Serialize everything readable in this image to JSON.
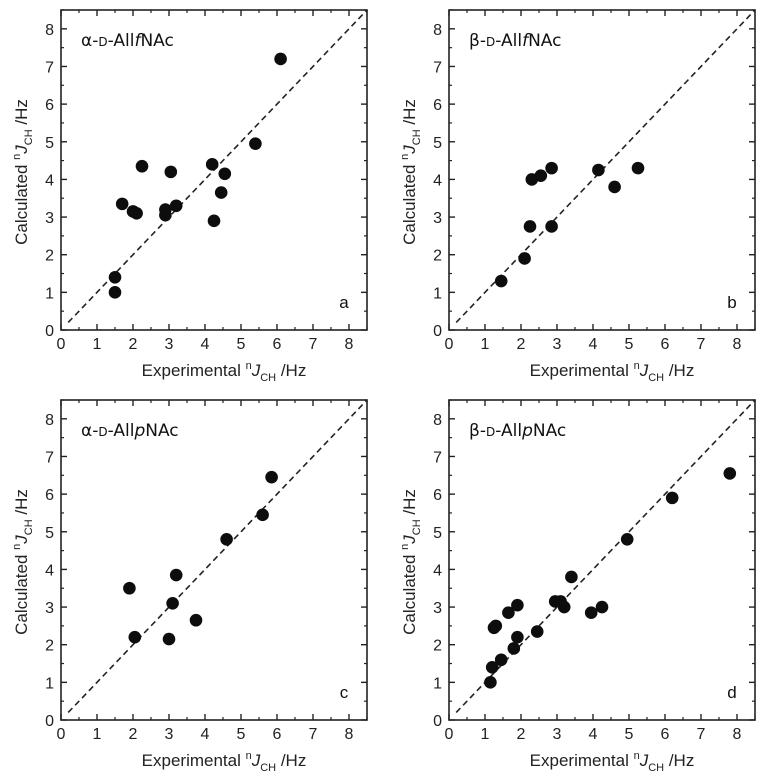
{
  "chart_data": [
    {
      "type": "scatter",
      "panel_letter": "a",
      "title": {
        "prefix": "α-",
        "sc": "d",
        "mid": "-All",
        "italic": "f",
        "suffix": "NAc"
      },
      "xlabel": {
        "base": "Experimental ",
        "sup": "n",
        "italic": "J",
        "sub": "CH",
        "unit": " /Hz"
      },
      "ylabel": {
        "base": "Calculated ",
        "sup": "n",
        "italic": "J",
        "sub": "CH",
        "unit": " /Hz"
      },
      "xlim": [
        0,
        8.5
      ],
      "ylim": [
        0,
        8.5
      ],
      "xticks": [
        0,
        1,
        2,
        3,
        4,
        5,
        6,
        7,
        8
      ],
      "yticks": [
        0,
        1,
        2,
        3,
        4,
        5,
        6,
        7,
        8
      ],
      "reference_line": "y = x",
      "grid": false,
      "points": [
        [
          1.5,
          1.4
        ],
        [
          1.5,
          1.0
        ],
        [
          1.7,
          3.35
        ],
        [
          2.0,
          3.15
        ],
        [
          2.1,
          3.1
        ],
        [
          2.25,
          4.35
        ],
        [
          2.9,
          3.2
        ],
        [
          2.9,
          3.05
        ],
        [
          3.05,
          4.2
        ],
        [
          3.2,
          3.3
        ],
        [
          4.2,
          4.4
        ],
        [
          4.25,
          2.9
        ],
        [
          4.45,
          3.65
        ],
        [
          4.55,
          4.15
        ],
        [
          5.4,
          4.95
        ],
        [
          6.1,
          7.2
        ]
      ]
    },
    {
      "type": "scatter",
      "panel_letter": "b",
      "title": {
        "prefix": "β-",
        "sc": "d",
        "mid": "-All",
        "italic": "f",
        "suffix": "NAc"
      },
      "xlabel": {
        "base": "Experimental ",
        "sup": "n",
        "italic": "J",
        "sub": "CH",
        "unit": " /Hz"
      },
      "ylabel": {
        "base": "Calculated ",
        "sup": "n",
        "italic": "J",
        "sub": "CH",
        "unit": " /Hz"
      },
      "xlim": [
        0,
        8.5
      ],
      "ylim": [
        0,
        8.5
      ],
      "xticks": [
        0,
        1,
        2,
        3,
        4,
        5,
        6,
        7,
        8
      ],
      "yticks": [
        0,
        1,
        2,
        3,
        4,
        5,
        6,
        7,
        8
      ],
      "reference_line": "y = x",
      "grid": false,
      "points": [
        [
          1.45,
          1.3
        ],
        [
          2.1,
          1.9
        ],
        [
          2.25,
          2.75
        ],
        [
          2.3,
          4.0
        ],
        [
          2.55,
          4.1
        ],
        [
          2.85,
          4.3
        ],
        [
          2.85,
          2.75
        ],
        [
          4.15,
          4.25
        ],
        [
          4.6,
          3.8
        ],
        [
          5.25,
          4.3
        ]
      ]
    },
    {
      "type": "scatter",
      "panel_letter": "c",
      "title": {
        "prefix": "α-",
        "sc": "d",
        "mid": "-All",
        "italic": "p",
        "suffix": "NAc"
      },
      "xlabel": {
        "base": "Experimental ",
        "sup": "n",
        "italic": "J",
        "sub": "CH",
        "unit": " /Hz"
      },
      "ylabel": {
        "base": "Calculated ",
        "sup": "n",
        "italic": "J",
        "sub": "CH",
        "unit": " /Hz"
      },
      "xlim": [
        0,
        8.5
      ],
      "ylim": [
        0,
        8.5
      ],
      "xticks": [
        0,
        1,
        2,
        3,
        4,
        5,
        6,
        7,
        8
      ],
      "yticks": [
        0,
        1,
        2,
        3,
        4,
        5,
        6,
        7,
        8
      ],
      "reference_line": "y = x",
      "grid": false,
      "points": [
        [
          1.9,
          3.5
        ],
        [
          2.05,
          2.2
        ],
        [
          3.0,
          2.15
        ],
        [
          3.1,
          3.1
        ],
        [
          3.2,
          3.85
        ],
        [
          3.75,
          2.65
        ],
        [
          4.6,
          4.8
        ],
        [
          5.6,
          5.45
        ],
        [
          5.85,
          6.45
        ]
      ]
    },
    {
      "type": "scatter",
      "panel_letter": "d",
      "title": {
        "prefix": "β-",
        "sc": "d",
        "mid": "-All",
        "italic": "p",
        "suffix": "NAc"
      },
      "xlabel": {
        "base": "Experimental ",
        "sup": "n",
        "italic": "J",
        "sub": "CH",
        "unit": " /Hz"
      },
      "ylabel": {
        "base": "Calculated ",
        "sup": "n",
        "italic": "J",
        "sub": "CH",
        "unit": " /Hz"
      },
      "xlim": [
        0,
        8.5
      ],
      "ylim": [
        0,
        8.5
      ],
      "xticks": [
        0,
        1,
        2,
        3,
        4,
        5,
        6,
        7,
        8
      ],
      "yticks": [
        0,
        1,
        2,
        3,
        4,
        5,
        6,
        7,
        8
      ],
      "reference_line": "y = x",
      "grid": false,
      "points": [
        [
          1.15,
          1.0
        ],
        [
          1.2,
          1.4
        ],
        [
          1.25,
          2.45
        ],
        [
          1.3,
          2.5
        ],
        [
          1.45,
          1.6
        ],
        [
          1.65,
          2.85
        ],
        [
          1.8,
          1.9
        ],
        [
          1.9,
          3.05
        ],
        [
          1.9,
          2.2
        ],
        [
          2.45,
          2.35
        ],
        [
          2.95,
          3.15
        ],
        [
          3.1,
          3.15
        ],
        [
          3.2,
          3.0
        ],
        [
          3.4,
          3.8
        ],
        [
          3.95,
          2.85
        ],
        [
          4.25,
          3.0
        ],
        [
          4.95,
          4.8
        ],
        [
          6.2,
          5.9
        ],
        [
          7.8,
          6.55
        ]
      ]
    }
  ]
}
